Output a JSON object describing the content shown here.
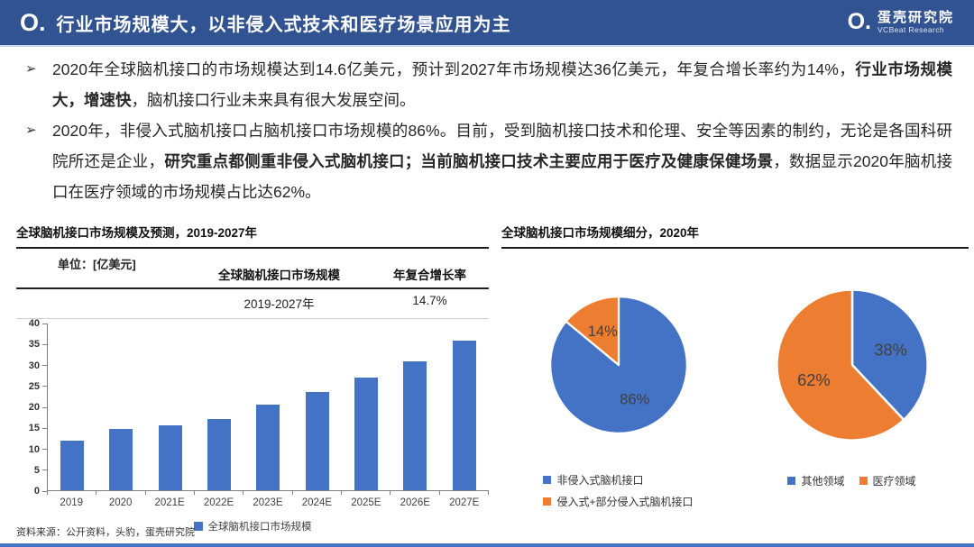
{
  "header": {
    "logo_mark": "O.",
    "title": "行业市场规模大，以非侵入式技术和医疗场景应用为主",
    "brand_name": "蛋壳研究院",
    "brand_sub": "VCBeat Research"
  },
  "bullets": [
    {
      "marker": "➢",
      "segments": [
        {
          "text": "2020年全球脑机接口的市场规模达到14.6亿美元，预计到2027年市场规模达36亿美元，年复合增长率约为14%，",
          "bold": false
        },
        {
          "text": "行业市场规模大，增速快",
          "bold": true
        },
        {
          "text": "，脑机接口行业未来具有很大发展空间。",
          "bold": false
        }
      ]
    },
    {
      "marker": "➢",
      "segments": [
        {
          "text": "2020年，非侵入式脑机接口占脑机接口市场规模的86%。目前，受到脑机接口技术和伦理、安全等因素的制约，无论是各国科研院所还是企业，",
          "bold": false
        },
        {
          "text": "研究重点都侧重非侵入式脑机接口；当前脑机接口技术主要应用于医疗及健康保健场景",
          "bold": true
        },
        {
          "text": "，数据显示2020年脑机接口在医疗领域的市场规模占比达62%。",
          "bold": false
        }
      ]
    }
  ],
  "left_panel": {
    "unit_label": "单位：[亿美元]",
    "table": {
      "col1_header": "全球脑机接口市场规模",
      "col2_header": "年复合增长率",
      "col1_value": "2019-2027年",
      "col2_value": "14.7%"
    }
  },
  "right_panel": {
    "title": "全球脑机接口市场规模细分，2020年"
  },
  "footer": {
    "source": "资料来源：公开资料，头豹，蛋壳研究院"
  },
  "colors": {
    "accent_blue": "#4472C4",
    "accent_orange": "#ED7D31",
    "header_navy": "#315391"
  },
  "chart_data": [
    {
      "type": "bar",
      "title": "全球脑机接口市场规模及预测，2019-2027年",
      "unit": "亿美元",
      "series_name": "全球脑机接口市场规模",
      "cagr_label": "年复合增长率",
      "cagr": "14.7%",
      "categories": [
        "2019",
        "2020",
        "2021E",
        "2022E",
        "2023E",
        "2024E",
        "2025E",
        "2026E",
        "2027E"
      ],
      "values": [
        12,
        14.6,
        15.5,
        17,
        20.5,
        23.5,
        27,
        31,
        36
      ],
      "ylim": [
        0,
        40
      ],
      "ytick_step": 5,
      "grid": false,
      "legend_position": "bottom"
    },
    {
      "type": "pie",
      "title": "全球脑机接口市场规模细分，2020年（按技术）",
      "labels": [
        "非侵入式脑机接口",
        "侵入式+部分侵入式脑机接口"
      ],
      "values": [
        86,
        14
      ],
      "colors": [
        "#4472C4",
        "#ED7D31"
      ],
      "legend_position": "bottom"
    },
    {
      "type": "pie",
      "title": "全球脑机接口市场规模细分，2020年（按场景）",
      "labels": [
        "其他领域",
        "医疗领域"
      ],
      "values": [
        38,
        62
      ],
      "colors": [
        "#4472C4",
        "#ED7D31"
      ],
      "legend_position": "bottom"
    }
  ]
}
